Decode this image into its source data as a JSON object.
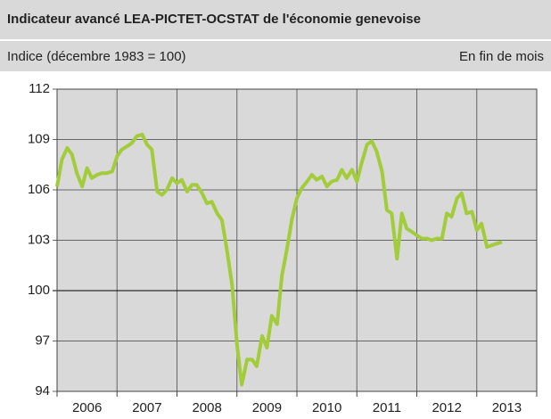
{
  "chart_data": {
    "type": "line",
    "title": "Indicateur avancé LEA-PICTET-OCSTAT de l'économie genevoise",
    "subtitle": "Indice (décembre 1983 = 100)",
    "note": "En fin de mois",
    "year_labels": [
      "2006",
      "2007",
      "2008",
      "2009",
      "2010",
      "2011",
      "2012",
      "2013"
    ],
    "xlim": [
      2006,
      2014
    ],
    "ylim": [
      94,
      112
    ],
    "yticks": [
      94,
      97,
      100,
      103,
      106,
      109,
      112
    ],
    "grid": true,
    "color": "#a2cc3a",
    "x": [
      2006.0,
      2006.08,
      2006.17,
      2006.25,
      2006.33,
      2006.42,
      2006.5,
      2006.58,
      2006.67,
      2006.75,
      2006.83,
      2006.92,
      2007.0,
      2007.08,
      2007.17,
      2007.25,
      2007.33,
      2007.42,
      2007.5,
      2007.58,
      2007.67,
      2007.75,
      2007.83,
      2007.92,
      2008.0,
      2008.08,
      2008.17,
      2008.25,
      2008.33,
      2008.42,
      2008.5,
      2008.58,
      2008.67,
      2008.75,
      2008.83,
      2008.92,
      2009.0,
      2009.08,
      2009.17,
      2009.25,
      2009.33,
      2009.42,
      2009.5,
      2009.58,
      2009.67,
      2009.75,
      2009.83,
      2009.92,
      2010.0,
      2010.08,
      2010.17,
      2010.25,
      2010.33,
      2010.42,
      2010.5,
      2010.58,
      2010.67,
      2010.75,
      2010.83,
      2010.92,
      2011.0,
      2011.08,
      2011.17,
      2011.25,
      2011.33,
      2011.42,
      2011.5,
      2011.58,
      2011.67,
      2011.75,
      2011.83,
      2011.92,
      2012.0,
      2012.08,
      2012.17,
      2012.25,
      2012.33,
      2012.42,
      2012.5,
      2012.58,
      2012.67,
      2012.75,
      2012.83,
      2012.92,
      2013.0,
      2013.08,
      2013.17,
      2013.25,
      2013.33,
      2013.42
    ],
    "values": [
      106.2,
      107.8,
      108.5,
      108.1,
      107.0,
      106.2,
      107.3,
      106.7,
      106.9,
      107.0,
      107.0,
      107.1,
      108.0,
      108.4,
      108.6,
      108.8,
      109.2,
      109.3,
      108.7,
      108.4,
      105.9,
      105.7,
      106.0,
      106.7,
      106.4,
      106.6,
      105.9,
      106.3,
      106.3,
      105.8,
      105.2,
      105.3,
      104.6,
      104.2,
      102.5,
      100.3,
      96.8,
      94.4,
      95.9,
      95.9,
      95.5,
      97.3,
      96.6,
      98.5,
      98.0,
      100.9,
      102.4,
      104.3,
      105.5,
      106.1,
      106.5,
      106.9,
      106.6,
      106.8,
      106.2,
      106.5,
      106.6,
      107.2,
      106.7,
      107.2,
      106.5,
      107.6,
      108.7,
      108.9,
      108.3,
      107.1,
      104.8,
      104.6,
      101.9,
      104.6,
      103.7,
      103.5,
      103.3,
      103.1,
      103.1,
      103.0,
      103.1,
      103.1,
      104.6,
      104.4,
      105.5,
      105.8,
      104.6,
      104.7,
      103.6,
      104.0,
      102.6,
      102.7,
      102.8,
      102.9
    ]
  }
}
